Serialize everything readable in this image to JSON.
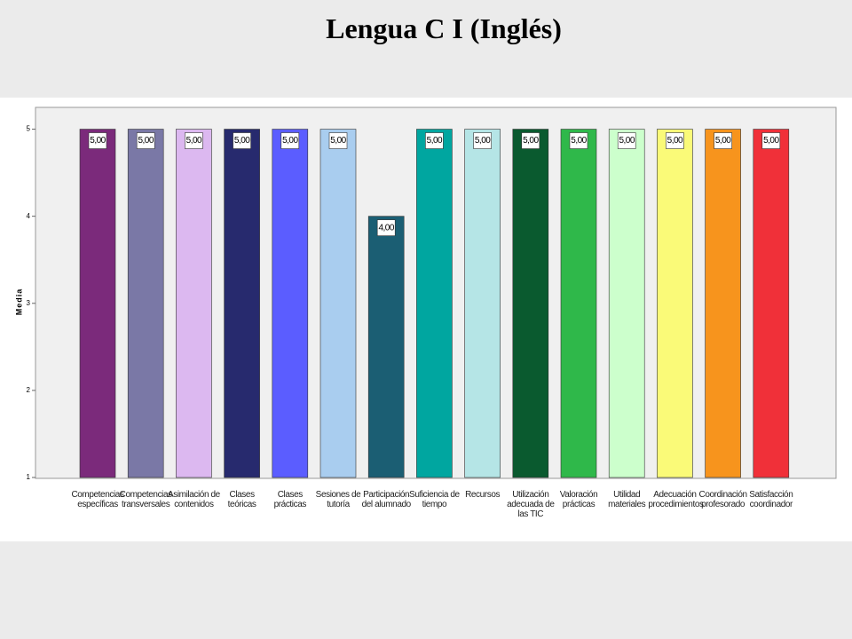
{
  "chart_data": {
    "type": "bar",
    "title": "Lengua C I (Inglés)",
    "ylabel": "Media",
    "categories": [
      "Competencias específicas",
      "Competencias transversales",
      "Asimilación de contenidos",
      "Clases teóricas",
      "Clases prácticas",
      "Sesiones de tutoría",
      "Participación del alumnado",
      "Suficiencia de tiempo",
      "Recursos",
      "Utilización adecuada de las TIC",
      "Valoración prácticas",
      "Utilidad materiales",
      "Adecuación procedimientos",
      "Coordinación profesorado",
      "Satisfacción coordinador"
    ],
    "values": [
      5,
      5,
      5,
      5,
      5,
      5,
      4,
      5,
      5,
      5,
      5,
      5,
      5,
      5,
      5
    ],
    "value_labels": [
      "5,00",
      "5,00",
      "5,00",
      "5,00",
      "5,00",
      "5,00",
      "4,00",
      "5,00",
      "5,00",
      "5,00",
      "5,00",
      "5,00",
      "5,00",
      "5,00",
      "5,00"
    ],
    "colors": [
      "#7b2a7b",
      "#7a78a6",
      "#dcb8f0",
      "#272a6e",
      "#5b5dff",
      "#a9cdef",
      "#1b5e73",
      "#00a6a0",
      "#b5e5e6",
      "#0a5a2f",
      "#2fb84a",
      "#ccffcc",
      "#fafa78",
      "#f7941d",
      "#f03039"
    ],
    "ylim": [
      1,
      5.25
    ],
    "yticks": [
      1,
      2,
      3,
      4,
      5
    ]
  }
}
